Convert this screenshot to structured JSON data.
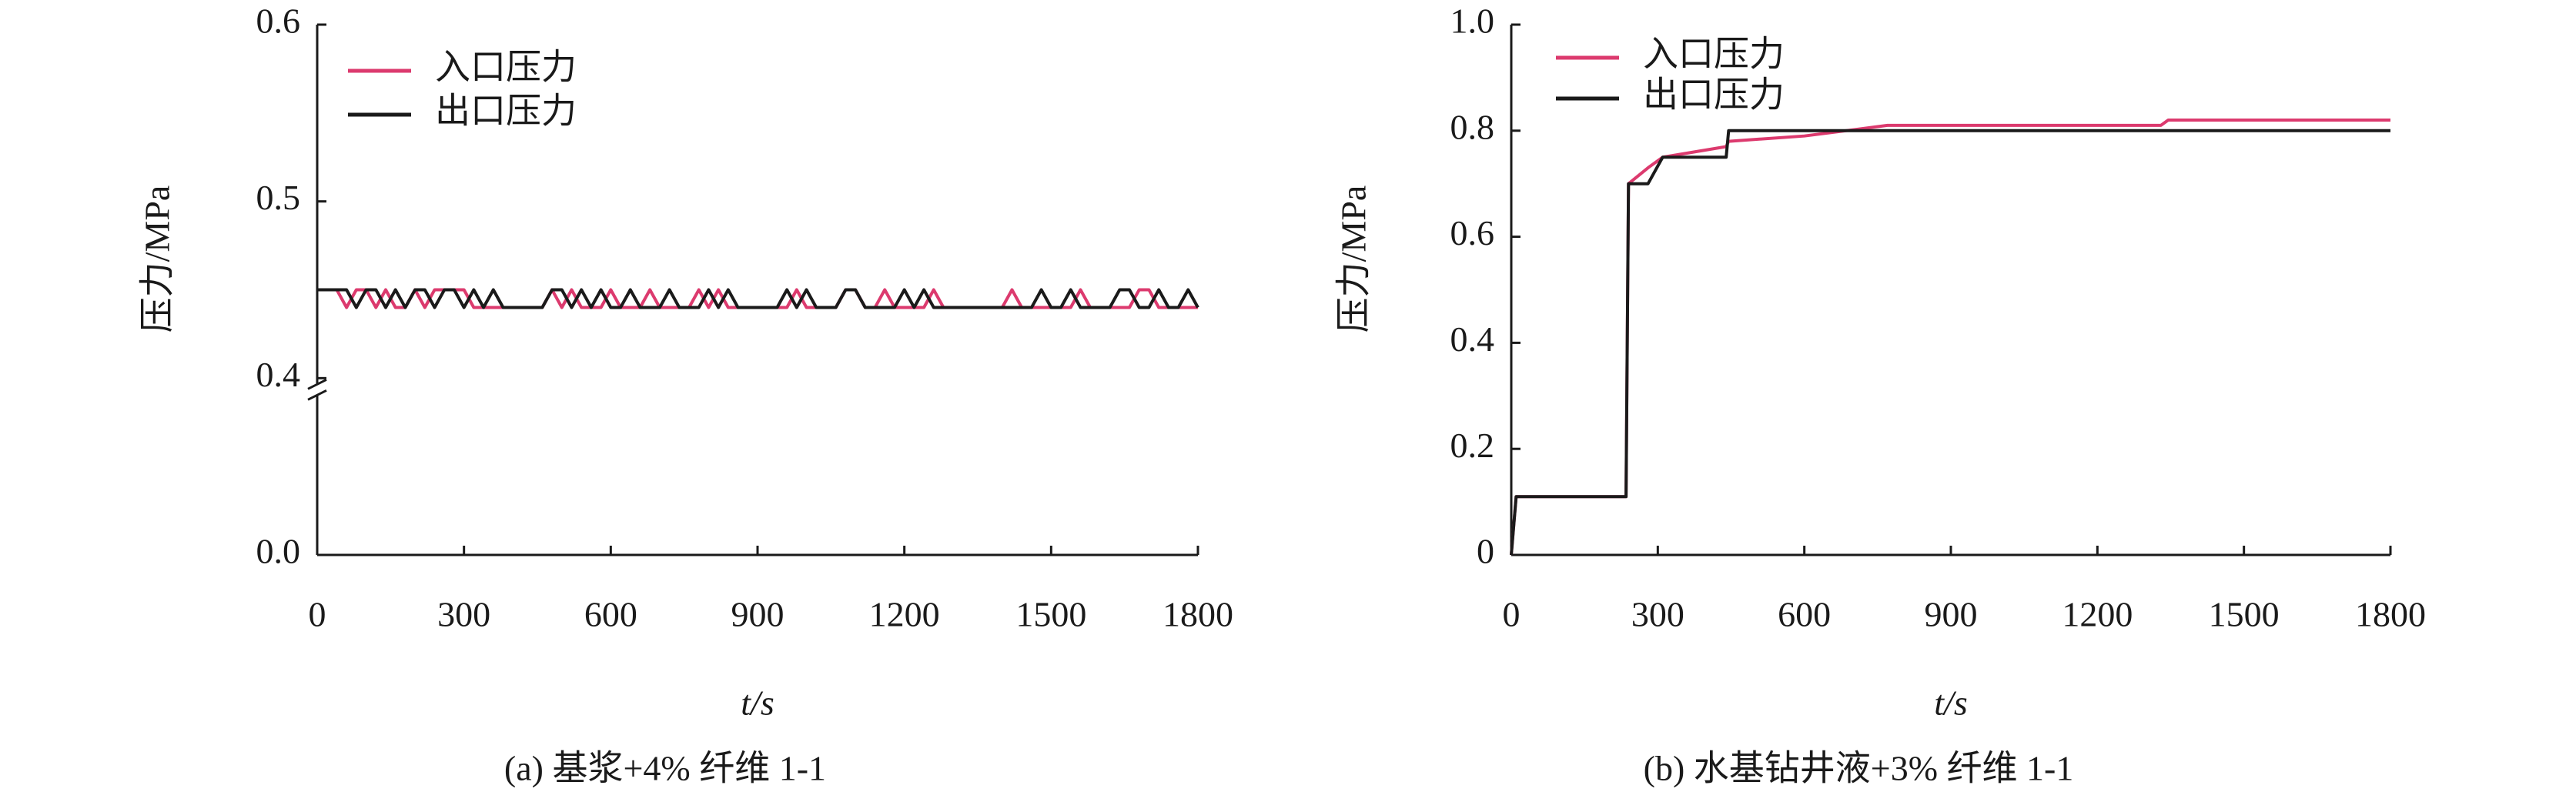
{
  "chart_data": [
    {
      "type": "line",
      "caption": "(a) 基浆+4% 纤维 1-1",
      "xlabel": "t/s",
      "ylabel": "压力/MPa",
      "xlim": [
        0,
        1800
      ],
      "xticks": [
        0,
        300,
        600,
        900,
        1200,
        1500,
        1800
      ],
      "ylim": [
        0,
        0.6
      ],
      "yticks": [
        {
          "value": 0,
          "label": "0.0"
        },
        0.4,
        0.5,
        0.6
      ],
      "y_break": true,
      "x": [
        0,
        20,
        40,
        60,
        80,
        100,
        120,
        140,
        160,
        180,
        200,
        220,
        240,
        260,
        280,
        300,
        320,
        340,
        360,
        380,
        400,
        420,
        440,
        460,
        480,
        500,
        520,
        540,
        560,
        580,
        600,
        620,
        640,
        660,
        680,
        700,
        720,
        740,
        760,
        780,
        800,
        820,
        840,
        860,
        880,
        900,
        920,
        940,
        960,
        980,
        1000,
        1020,
        1040,
        1060,
        1080,
        1100,
        1120,
        1140,
        1160,
        1180,
        1200,
        1220,
        1240,
        1260,
        1280,
        1300,
        1320,
        1340,
        1360,
        1380,
        1400,
        1420,
        1440,
        1460,
        1480,
        1500,
        1520,
        1540,
        1560,
        1580,
        1600,
        1620,
        1640,
        1660,
        1680,
        1700,
        1720,
        1740,
        1760,
        1780,
        1800
      ],
      "series": [
        {
          "name": "入口压力",
          "color": "#dc3a6e",
          "values": [
            0.45,
            0.45,
            0.45,
            0.44,
            0.45,
            0.45,
            0.44,
            0.45,
            0.44,
            0.44,
            0.45,
            0.44,
            0.45,
            0.45,
            0.45,
            0.45,
            0.44,
            0.44,
            0.44,
            0.44,
            0.44,
            0.44,
            0.44,
            0.44,
            0.45,
            0.44,
            0.45,
            0.44,
            0.44,
            0.44,
            0.45,
            0.44,
            0.44,
            0.44,
            0.45,
            0.44,
            0.44,
            0.44,
            0.44,
            0.45,
            0.44,
            0.45,
            0.44,
            0.44,
            0.44,
            0.44,
            0.44,
            0.44,
            0.44,
            0.45,
            0.44,
            0.44,
            0.44,
            0.44,
            0.45,
            0.45,
            0.44,
            0.44,
            0.45,
            0.44,
            0.44,
            0.44,
            0.44,
            0.45,
            0.44,
            0.44,
            0.44,
            0.44,
            0.44,
            0.44,
            0.44,
            0.45,
            0.44,
            0.44,
            0.44,
            0.44,
            0.44,
            0.44,
            0.45,
            0.44,
            0.44,
            0.44,
            0.44,
            0.44,
            0.45,
            0.45,
            0.44,
            0.44,
            0.44,
            0.44,
            0.44
          ]
        },
        {
          "name": "出口压力",
          "color": "#1a1a1a",
          "values": [
            0.45,
            0.45,
            0.45,
            0.45,
            0.44,
            0.45,
            0.45,
            0.44,
            0.45,
            0.44,
            0.45,
            0.45,
            0.44,
            0.45,
            0.45,
            0.44,
            0.45,
            0.44,
            0.45,
            0.44,
            0.44,
            0.44,
            0.44,
            0.44,
            0.45,
            0.45,
            0.44,
            0.45,
            0.44,
            0.45,
            0.44,
            0.44,
            0.45,
            0.44,
            0.44,
            0.44,
            0.45,
            0.44,
            0.44,
            0.44,
            0.45,
            0.44,
            0.45,
            0.44,
            0.44,
            0.44,
            0.44,
            0.44,
            0.45,
            0.44,
            0.45,
            0.44,
            0.44,
            0.44,
            0.45,
            0.45,
            0.44,
            0.44,
            0.44,
            0.44,
            0.45,
            0.44,
            0.45,
            0.44,
            0.44,
            0.44,
            0.44,
            0.44,
            0.44,
            0.44,
            0.44,
            0.44,
            0.44,
            0.44,
            0.45,
            0.44,
            0.44,
            0.45,
            0.44,
            0.44,
            0.44,
            0.44,
            0.45,
            0.45,
            0.44,
            0.44,
            0.45,
            0.44,
            0.44,
            0.45,
            0.44
          ]
        }
      ]
    },
    {
      "type": "line",
      "caption": "(b) 水基钻井液+3% 纤维 1-1",
      "xlabel": "t/s",
      "ylabel": "压力/MPa",
      "xlim": [
        0,
        1800
      ],
      "xticks": [
        0,
        300,
        600,
        900,
        1200,
        1500,
        1800
      ],
      "ylim": [
        0,
        1.0
      ],
      "yticks": [
        0,
        0.2,
        0.4,
        0.6,
        0.8,
        {
          "value": 1,
          "label": "1.0"
        }
      ],
      "y_break": false,
      "x": [
        0,
        10,
        235,
        240,
        280,
        310,
        440,
        445,
        600,
        770,
        1330,
        1345,
        1800
      ],
      "series": [
        {
          "name": "入口压力",
          "color": "#dc3a6e",
          "values": [
            0,
            0.11,
            0.11,
            0.7,
            0.73,
            0.75,
            0.77,
            0.78,
            0.79,
            0.81,
            0.81,
            0.82,
            0.82
          ]
        },
        {
          "name": "出口压力",
          "color": "#1a1a1a",
          "values": [
            0,
            0.11,
            0.11,
            0.7,
            0.7,
            0.75,
            0.75,
            0.8,
            0.8,
            0.8,
            0.8,
            0.8,
            0.8
          ]
        }
      ]
    }
  ]
}
